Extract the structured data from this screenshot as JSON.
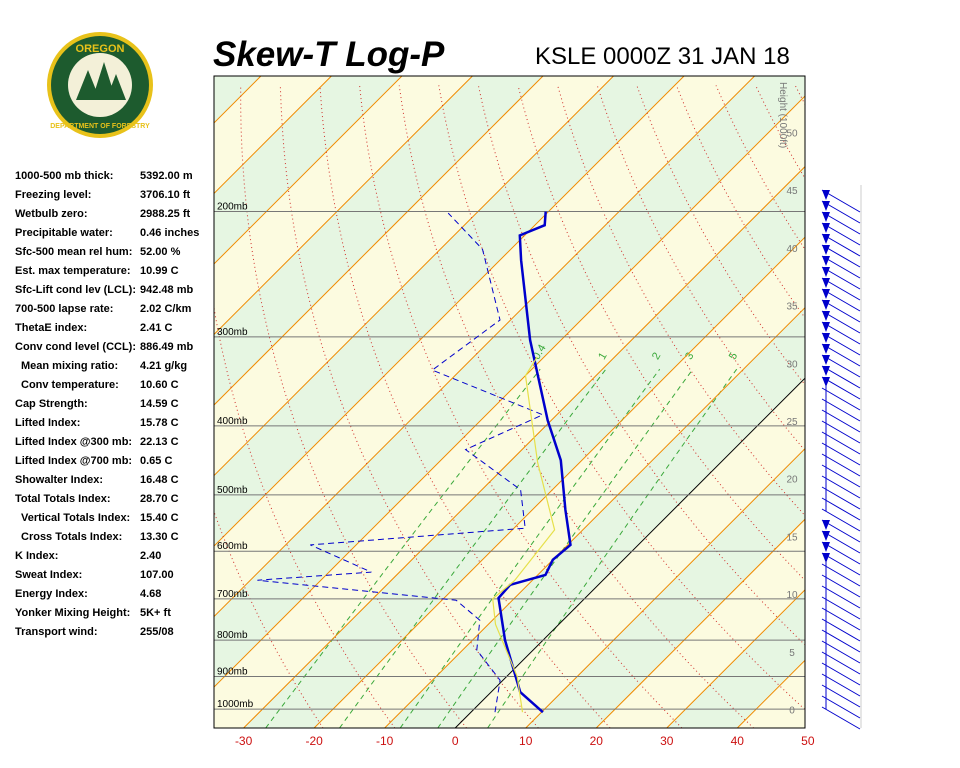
{
  "header": {
    "title": "Skew-T Log-P",
    "subtitle": "KSLE 0000Z 31 JAN 18",
    "logo": [
      "OREGON",
      "DEPARTMENT OF FORESTRY"
    ]
  },
  "stats": [
    [
      "1000-500 mb thick:",
      "5392.00 m"
    ],
    [
      "Freezing level:",
      "3706.10 ft"
    ],
    [
      "Wetbulb zero:",
      "2988.25 ft"
    ],
    [
      "Precipitable water:",
      "0.46 inches"
    ],
    [
      "Sfc-500 mean rel hum:",
      "52.00 %"
    ],
    [
      "Est. max temperature:",
      "10.99 C"
    ],
    [
      "Sfc-Lift cond lev (LCL):",
      "942.48 mb"
    ],
    [
      "700-500 lapse rate:",
      "2.02 C/km"
    ],
    [
      "ThetaE index:",
      "2.41 C"
    ],
    [
      "Conv cond level (CCL):",
      "886.49 mb"
    ],
    [
      "Mean mixing ratio:",
      "4.21 g/kg"
    ],
    [
      "Conv temperature:",
      "10.60 C"
    ],
    [
      "Cap Strength:",
      "14.59 C"
    ],
    [
      "Lifted Index:",
      "15.78 C"
    ],
    [
      "Lifted Index @300 mb:",
      "22.13 C"
    ],
    [
      "Lifted Index @700 mb:",
      "0.65 C"
    ],
    [
      "Showalter Index:",
      "16.48 C"
    ],
    [
      "Total Totals Index:",
      "28.70 C"
    ],
    [
      "Vertical Totals Index:",
      "15.40 C"
    ],
    [
      "Cross Totals Index:",
      "13.30 C"
    ],
    [
      "K Index:",
      "2.40"
    ],
    [
      "Sweat Index:",
      "107.00"
    ],
    [
      "Energy Index:",
      "4.68"
    ],
    [
      "Yonker Mixing Height:",
      "5K+ ft"
    ],
    [
      "Transport wind:",
      "255/08"
    ]
  ],
  "chart_data": {
    "type": "skewt",
    "xlim": [
      -34.2,
      49.6
    ],
    "xticks": [
      -30,
      -20,
      -10,
      0,
      10,
      20,
      30,
      40,
      50
    ],
    "ylim": [
      1063,
      129
    ],
    "log_y": true,
    "yticks": [
      {
        "value": 1000,
        "label": "1000mb"
      },
      {
        "value": 900,
        "label": "900mb"
      },
      {
        "value": 800,
        "label": "800mb"
      },
      {
        "value": 700,
        "label": "700mb"
      },
      {
        "value": 600,
        "label": "600mb"
      },
      {
        "value": 500,
        "label": "500mb"
      },
      {
        "value": 400,
        "label": "400mb"
      },
      {
        "value": 300,
        "label": "300mb"
      },
      {
        "value": 200,
        "label": "200mb"
      }
    ],
    "y2label": "Height (1000ft)",
    "y2lim": [
      -1.6,
      54.9
    ],
    "y2ticks": [
      0,
      5,
      10,
      15,
      20,
      25,
      30,
      35,
      40,
      45,
      50
    ],
    "mixing_ratios": [
      0.4,
      1,
      2,
      3,
      5
    ],
    "series": [
      {
        "color": "#0000cc",
        "dash": false,
        "pressure": [
          1010,
          946,
          800,
          698,
          669,
          648,
          617,
          588,
          525,
          447,
          393,
          303,
          234,
          216,
          209,
          200
        ],
        "values": [
          10.2,
          4.1,
          -5.4,
          -12.3,
          -12.5,
          -8.9,
          -10,
          -9.6,
          -15.3,
          -23,
          -30.5,
          -44.4,
          -57,
          -60.7,
          -58.6,
          -60.4
        ]
      },
      {
        "color": "#0000cc",
        "dash": true,
        "pressure": [
          1010,
          911,
          826,
          750,
          703,
          659,
          642,
          588,
          557,
          492,
          432,
          386,
          334,
          284,
          226,
          201
        ],
        "values": [
          3.4,
          -0.4,
          -8,
          -11.8,
          -18,
          -49,
          -34,
          -46.5,
          -18.4,
          -24.5,
          -38,
          -32,
          -54,
          -51.5,
          -64,
          -74
        ]
      },
      {
        "color": "#e6e04a",
        "dash": false,
        "pressure": [
          1010,
          900,
          760,
          700,
          660,
          560,
          450,
          340,
          320
        ],
        "values": [
          7.3,
          1.5,
          -9,
          -13,
          -12.5,
          -14,
          -26,
          -40,
          -41
        ]
      }
    ]
  }
}
